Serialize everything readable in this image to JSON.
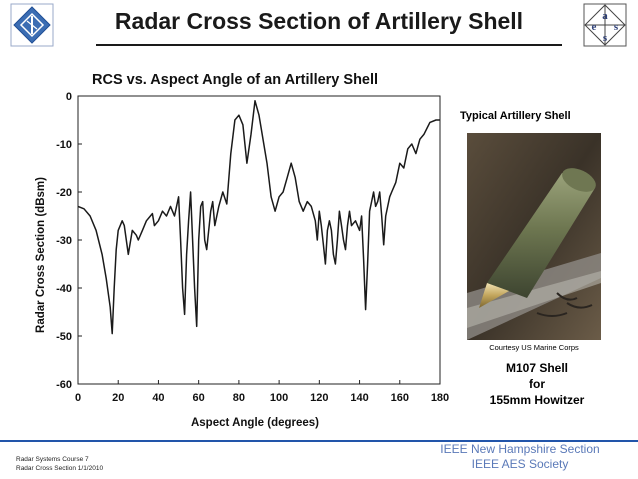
{
  "slide": {
    "title": "Radar Cross Section of Artillery Shell",
    "footer_left_line1": "Radar Systems Course   7",
    "footer_left_line2": "Radar Cross Section  1/1/2010",
    "footer_right_line1": "IEEE New Hampshire Section",
    "footer_right_line2": "IEEE AES Society",
    "logo_left_icon": "ieee-logo-icon",
    "logo_right_icon": "aess-logo-icon",
    "aess_letters": [
      "a",
      "e",
      "s",
      "s"
    ]
  },
  "photo": {
    "caption_top": "Typical Artillery Shell",
    "credit": "Courtesy US Marine Corps",
    "caption_line1": "M107 Shell",
    "caption_line2": "for",
    "caption_line3": "155mm Howitzer"
  },
  "chart_data": {
    "type": "line",
    "title": "RCS vs. Aspect Angle of an Artillery Shell",
    "xlabel": "Aspect Angle (degrees)",
    "ylabel": "Radar Cross Section (dBsm)",
    "xlim": [
      0,
      180
    ],
    "ylim": [
      -60,
      0
    ],
    "xticks": [
      0,
      20,
      40,
      60,
      80,
      100,
      120,
      140,
      160,
      180
    ],
    "yticks": [
      0,
      -10,
      -20,
      -30,
      -40,
      -50,
      -60
    ],
    "grid": false,
    "line_color": "#1a1a1a",
    "series": [
      {
        "x": [
          0,
          3,
          6,
          9,
          12,
          14,
          16,
          17,
          18,
          19,
          20,
          22,
          23,
          24,
          25,
          27,
          29,
          30,
          32,
          34,
          36,
          37,
          38,
          40,
          42,
          44,
          46,
          48,
          50,
          51,
          52,
          53,
          54,
          55,
          56,
          57,
          58,
          59,
          60,
          61,
          62,
          63,
          64,
          65,
          66,
          67,
          68,
          70,
          72,
          74,
          76,
          78,
          80,
          82,
          84,
          86,
          88,
          90,
          92,
          94,
          96,
          98,
          100,
          102,
          104,
          106,
          108,
          110,
          112,
          114,
          116,
          118,
          119,
          120,
          121,
          122,
          123,
          124,
          125,
          126,
          127,
          128,
          129,
          130,
          131,
          132,
          133,
          134,
          135,
          136,
          138,
          140,
          141,
          142,
          143,
          144,
          145,
          146,
          147,
          148,
          149,
          150,
          151,
          152,
          153,
          154,
          155,
          156,
          158,
          160,
          162,
          164,
          166,
          168,
          170,
          172,
          175,
          178,
          180
        ],
        "y": [
          -23,
          -23.5,
          -25,
          -28,
          -33,
          -38,
          -44,
          -49.5,
          -40,
          -32,
          -28,
          -26,
          -27,
          -30,
          -33,
          -28,
          -29,
          -30,
          -28,
          -26,
          -25,
          -24.5,
          -27,
          -26,
          -24,
          -25,
          -23,
          -25,
          -21,
          -30,
          -40,
          -45.5,
          -33,
          -26,
          -20,
          -30,
          -40,
          -48,
          -30,
          -23,
          -22,
          -30,
          -32,
          -28,
          -24,
          -22,
          -27,
          -23,
          -20,
          -22.5,
          -12,
          -5,
          -4,
          -6,
          -14,
          -8,
          -1,
          -4,
          -9,
          -14,
          -21,
          -24,
          -21,
          -20,
          -17,
          -14,
          -17,
          -22,
          -24,
          -22,
          -23,
          -26,
          -30,
          -24,
          -27,
          -31,
          -35,
          -28,
          -26,
          -28,
          -33,
          -35,
          -30,
          -24,
          -27,
          -30,
          -32,
          -27,
          -24,
          -27,
          -26,
          -28,
          -25,
          -34,
          -44.5,
          -35,
          -24,
          -22,
          -20,
          -23,
          -22,
          -20,
          -25,
          -31,
          -25,
          -23,
          -21,
          -20,
          -18,
          -14,
          -15,
          -11,
          -10,
          -12,
          -9,
          -8,
          -5.5,
          -5,
          -5
        ]
      }
    ]
  }
}
